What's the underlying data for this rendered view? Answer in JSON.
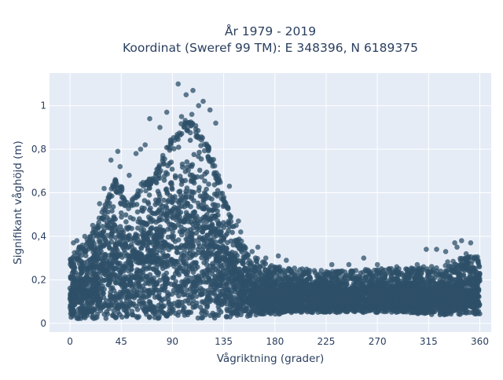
{
  "chart_data": {
    "type": "scatter",
    "title_line1": "År 1979 - 2019",
    "title_line2": "Koordinat (Sweref 99 TM): E 348396, N 6189375",
    "xlabel": "Vågriktning (grader)",
    "ylabel": "Signifikant våghöjd (m)",
    "xlim": [
      -18,
      370
    ],
    "ylim": [
      -0.04,
      1.15
    ],
    "x_ticks": [
      0,
      45,
      90,
      135,
      180,
      225,
      270,
      315,
      360
    ],
    "x_tick_labels": [
      "0",
      "45",
      "90",
      "135",
      "180",
      "225",
      "270",
      "315",
      "360"
    ],
    "y_ticks": [
      0,
      0.2,
      0.4,
      0.6,
      0.8,
      1
    ],
    "y_tick_labels": [
      "0",
      "0,2",
      "0,4",
      "0,6",
      "0,8",
      "1"
    ],
    "grid": true,
    "legend": "none",
    "colors": {
      "marker": "#2e5068",
      "plot_bg": "#e5ecf6",
      "grid": "#ffffff",
      "text": "#2a3f5f"
    },
    "series": [
      {
        "envelope": [
          [
            0,
            0.02,
            0.28
          ],
          [
            5,
            0.02,
            0.3
          ],
          [
            10,
            0.02,
            0.33
          ],
          [
            15,
            0.02,
            0.36
          ],
          [
            20,
            0.02,
            0.4
          ],
          [
            25,
            0.02,
            0.45
          ],
          [
            30,
            0.02,
            0.5
          ],
          [
            35,
            0.02,
            0.58
          ],
          [
            40,
            0.02,
            0.63
          ],
          [
            45,
            0.02,
            0.6
          ],
          [
            50,
            0.02,
            0.55
          ],
          [
            55,
            0.02,
            0.56
          ],
          [
            60,
            0.02,
            0.6
          ],
          [
            65,
            0.02,
            0.63
          ],
          [
            70,
            0.02,
            0.64
          ],
          [
            75,
            0.02,
            0.66
          ],
          [
            80,
            0.02,
            0.72
          ],
          [
            85,
            0.02,
            0.78
          ],
          [
            90,
            0.02,
            0.84
          ],
          [
            95,
            0.02,
            0.88
          ],
          [
            100,
            0.02,
            0.9
          ],
          [
            105,
            0.02,
            0.9
          ],
          [
            110,
            0.02,
            0.88
          ],
          [
            115,
            0.02,
            0.84
          ],
          [
            120,
            0.02,
            0.8
          ],
          [
            125,
            0.02,
            0.74
          ],
          [
            130,
            0.02,
            0.66
          ],
          [
            135,
            0.02,
            0.56
          ],
          [
            140,
            0.02,
            0.48
          ],
          [
            145,
            0.03,
            0.4
          ],
          [
            150,
            0.03,
            0.35
          ],
          [
            155,
            0.03,
            0.31
          ],
          [
            160,
            0.03,
            0.28
          ],
          [
            170,
            0.04,
            0.25
          ],
          [
            180,
            0.04,
            0.23
          ],
          [
            200,
            0.05,
            0.22
          ],
          [
            225,
            0.05,
            0.21
          ],
          [
            250,
            0.05,
            0.21
          ],
          [
            270,
            0.05,
            0.22
          ],
          [
            290,
            0.05,
            0.22
          ],
          [
            315,
            0.04,
            0.23
          ],
          [
            330,
            0.04,
            0.25
          ],
          [
            345,
            0.04,
            0.27
          ],
          [
            360,
            0.04,
            0.28
          ]
        ],
        "outliers": [
          [
            95,
            1.1
          ],
          [
            108,
            1.07
          ],
          [
            102,
            1.05
          ],
          [
            117,
            1.02
          ],
          [
            113,
            1.0
          ],
          [
            85,
            0.97
          ],
          [
            123,
            0.98
          ],
          [
            70,
            0.94
          ],
          [
            128,
            0.92
          ],
          [
            98,
            0.95
          ],
          [
            79,
            0.9
          ],
          [
            107,
            0.96
          ],
          [
            42,
            0.79
          ],
          [
            36,
            0.75
          ],
          [
            44,
            0.72
          ],
          [
            62,
            0.8
          ],
          [
            58,
            0.78
          ],
          [
            66,
            0.82
          ],
          [
            52,
            0.68
          ],
          [
            30,
            0.62
          ],
          [
            140,
            0.63
          ],
          [
            137,
            0.55
          ],
          [
            146,
            0.45
          ],
          [
            150,
            0.42
          ],
          [
            26,
            0.55
          ],
          [
            20,
            0.45
          ],
          [
            13,
            0.4
          ],
          [
            3,
            0.37
          ],
          [
            6,
            0.38
          ],
          [
            148,
            0.47
          ],
          [
            183,
            0.31
          ],
          [
            190,
            0.29
          ],
          [
            165,
            0.35
          ],
          [
            172,
            0.3
          ],
          [
            160,
            0.33
          ],
          [
            230,
            0.27
          ],
          [
            258,
            0.3
          ],
          [
            287,
            0.26
          ],
          [
            305,
            0.27
          ],
          [
            322,
            0.34
          ],
          [
            313,
            0.34
          ],
          [
            330,
            0.33
          ],
          [
            338,
            0.37
          ],
          [
            344,
            0.38
          ],
          [
            352,
            0.37
          ],
          [
            340,
            0.35
          ],
          [
            357,
            0.3
          ],
          [
            348,
            0.32
          ],
          [
            295,
            0.25
          ],
          [
            204,
            0.25
          ],
          [
            245,
            0.27
          ],
          [
            270,
            0.27
          ]
        ]
      }
    ]
  }
}
